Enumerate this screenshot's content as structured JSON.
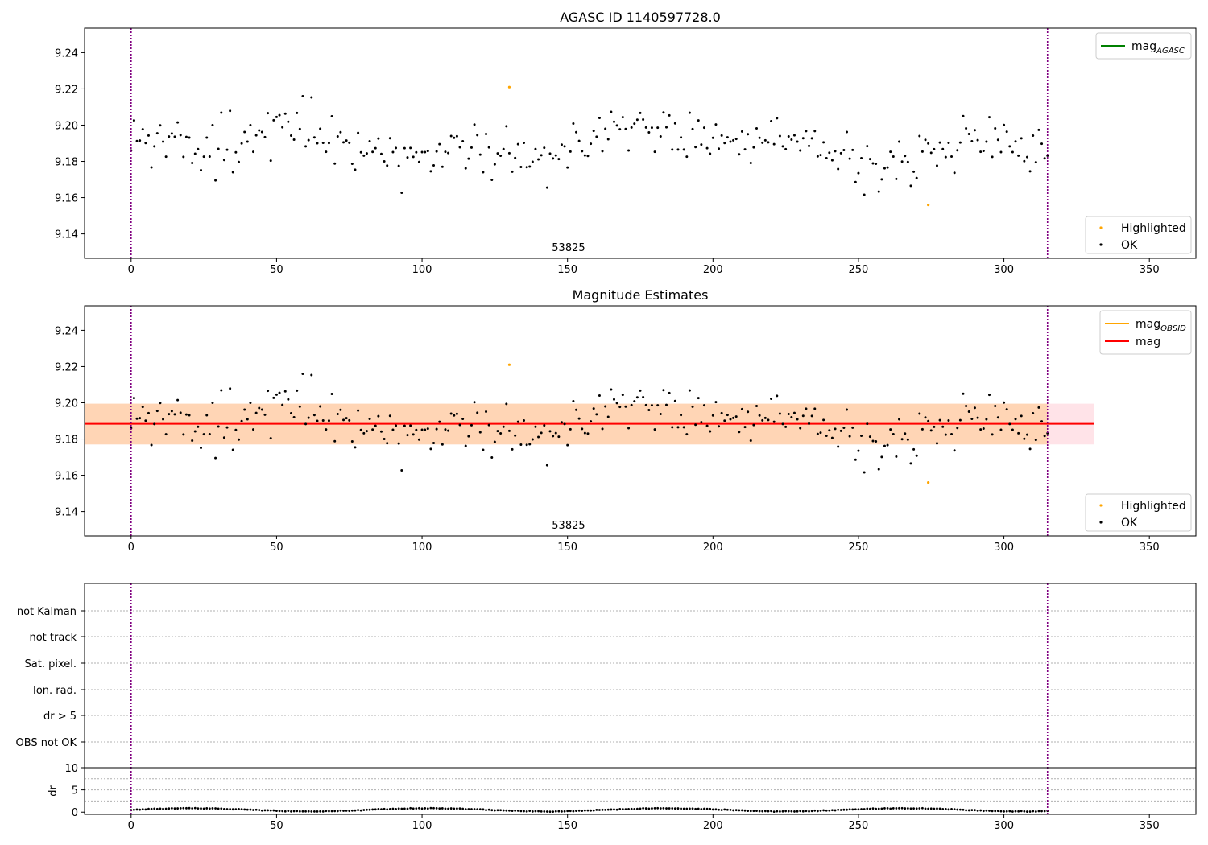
{
  "chart_data": [
    {
      "type": "scatter",
      "title": "AGASC ID 1140597728.0",
      "xlim": [
        -16,
        366
      ],
      "ylim": [
        9.1265,
        9.2535
      ],
      "xticks": [
        0,
        50,
        100,
        150,
        200,
        250,
        300,
        350
      ],
      "yticks": [
        9.14,
        9.16,
        9.18,
        9.2,
        9.22,
        9.24
      ],
      "vlines": [
        0,
        315
      ],
      "annotation": {
        "text": "53825",
        "x": 157
      },
      "legend_upper": [
        {
          "label": "mag",
          "sub": "AGASC",
          "color": "#008000"
        }
      ],
      "legend_lower": [
        {
          "label": "Highlighted",
          "color": "#ffa500"
        },
        {
          "label": "OK",
          "color": "#000000"
        }
      ],
      "highlighted": [
        [
          130,
          9.221
        ],
        [
          274,
          9.156
        ]
      ]
    },
    {
      "type": "scatter",
      "title": "Magnitude Estimates",
      "xlim": [
        -16,
        366
      ],
      "ylim": [
        9.1265,
        9.2535
      ],
      "xticks": [
        0,
        50,
        100,
        150,
        200,
        250,
        300,
        350
      ],
      "yticks": [
        9.14,
        9.16,
        9.18,
        9.2,
        9.22,
        9.24
      ],
      "vlines": [
        0,
        315
      ],
      "annotation": {
        "text": "53825",
        "x": 157
      },
      "mean_line": {
        "y": 9.1884,
        "x": [
          -16,
          331
        ],
        "color": "#ff0000"
      },
      "band_outer": {
        "y": [
          9.177,
          9.1995
        ],
        "x": [
          -16,
          331
        ]
      },
      "band_inner": {
        "y": [
          9.177,
          9.1995
        ],
        "x": [
          -16,
          315
        ]
      },
      "legend_upper": [
        {
          "label": "mag",
          "sub": "OBSID",
          "color": "#ffa500"
        },
        {
          "label": "mag",
          "sub": "",
          "color": "#ff0000"
        }
      ],
      "legend_lower": [
        {
          "label": "Highlighted",
          "color": "#ffa500"
        },
        {
          "label": "OK",
          "color": "#000000"
        }
      ],
      "highlighted": [
        [
          130,
          9.221
        ],
        [
          274,
          9.156
        ]
      ]
    },
    {
      "type": "table",
      "title": "",
      "xlim": [
        -16,
        366
      ],
      "vlines": [
        0,
        315
      ],
      "categories": [
        "not Kalman",
        "not track",
        "Sat. pixel.",
        "Ion. rad.",
        "dr > 5",
        "OBS not OK"
      ]
    },
    {
      "type": "scatter",
      "title": "",
      "ylabel": "dr",
      "xlim": [
        -16,
        366
      ],
      "ylim": [
        -0.5,
        10
      ],
      "xticks": [
        0,
        50,
        100,
        150,
        200,
        250,
        300,
        350
      ],
      "yticks": [
        0,
        5,
        10
      ],
      "vlines": [
        0,
        315
      ]
    }
  ]
}
